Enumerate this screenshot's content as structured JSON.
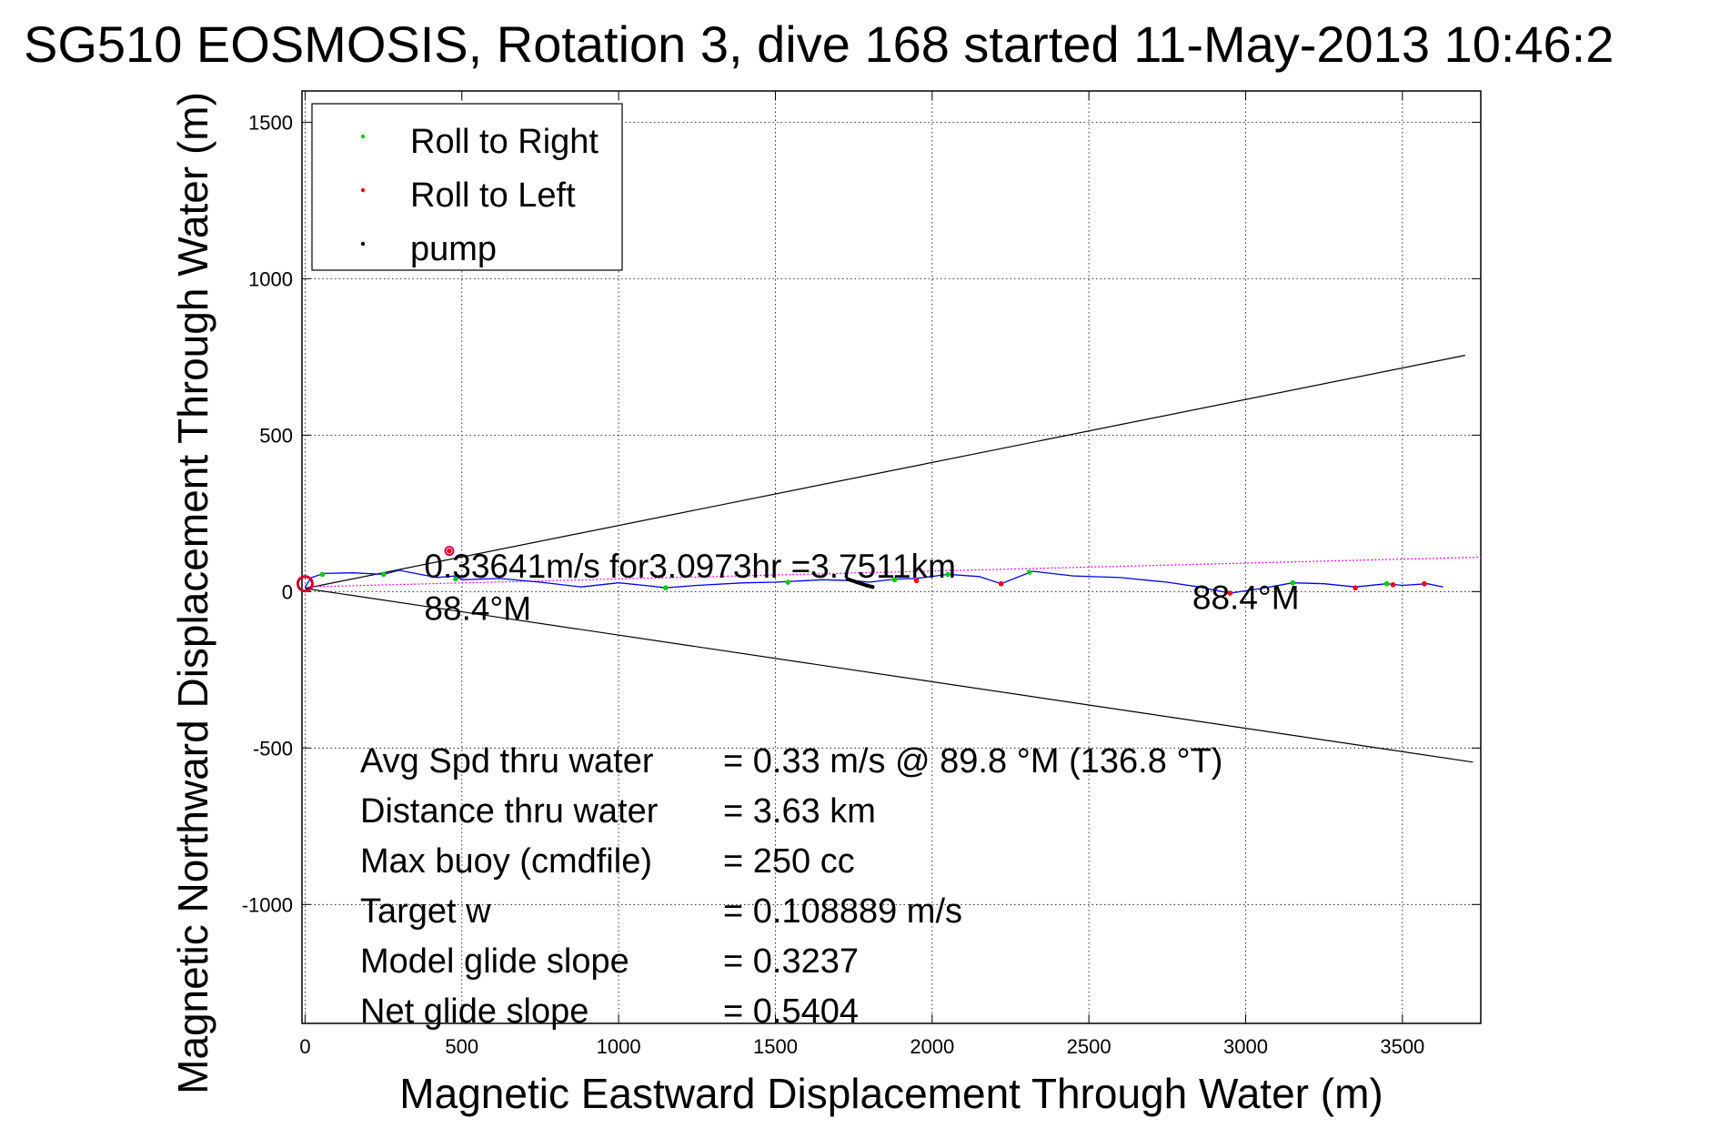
{
  "chart_data": {
    "type": "line",
    "title": "SG510 EOSMOSIS, Rotation 3, dive 168 started 11-May-2013 10:46:2",
    "xlabel": "Magnetic Eastward Displacement Through Water (m)",
    "ylabel": "Magnetic Northward Displacement Through Water (m)",
    "xlim": [
      -10,
      3750
    ],
    "ylim": [
      -1380,
      1600
    ],
    "grid": true,
    "legend_position": "top-left",
    "x_ticks": [
      "0",
      "500",
      "1000",
      "1500",
      "2000",
      "2500",
      "3000",
      "3500"
    ],
    "y_ticks": [
      "1500",
      "1000",
      "500",
      "0",
      "-500",
      "-1000"
    ],
    "x_tick_values": [
      0,
      500,
      1000,
      1500,
      2000,
      2500,
      3000,
      3500
    ],
    "y_tick_values": [
      1500,
      1000,
      500,
      0,
      -500,
      -1000
    ],
    "legend": [
      {
        "label": "Roll to Right",
        "color": "#00cc00"
      },
      {
        "label": "Roll to Left",
        "color": "#ff0000"
      },
      {
        "label": "pump",
        "color": "#000000"
      }
    ],
    "colors": {
      "track": "#0000ff",
      "net": "#ff00ff",
      "cone": "#000000"
    },
    "track": {
      "x": [
        0,
        20,
        60,
        150,
        250,
        300,
        420,
        480,
        500,
        620,
        750,
        880,
        1000,
        1100,
        1150,
        1250,
        1400,
        1500,
        1650,
        1750,
        1800,
        1880,
        1950,
        2050,
        2150,
        2220,
        2320,
        2450,
        2600,
        2750,
        2850,
        2950,
        3050,
        3150,
        3250,
        3350,
        3450,
        3500,
        3580,
        3630
      ],
      "y": [
        15,
        45,
        58,
        60,
        55,
        68,
        45,
        50,
        38,
        42,
        30,
        15,
        28,
        18,
        12,
        20,
        28,
        30,
        38,
        35,
        30,
        40,
        42,
        55,
        48,
        25,
        65,
        50,
        45,
        30,
        15,
        -5,
        10,
        28,
        25,
        15,
        25,
        20,
        25,
        15
      ]
    },
    "net_line": {
      "x": [
        0,
        3750
      ],
      "y": [
        15,
        110
      ]
    },
    "cone_lines": [
      {
        "x": [
          0,
          3700
        ],
        "y": [
          10,
          755
        ]
      },
      {
        "x": [
          0,
          3725
        ],
        "y": [
          10,
          -545
        ]
      }
    ],
    "roll_right_points": {
      "x": [
        55,
        250,
        480,
        1150,
        1540,
        1880,
        2050,
        2310,
        3150,
        3450,
        3570
      ],
      "y": [
        55,
        55,
        40,
        12,
        30,
        38,
        55,
        62,
        28,
        25,
        25
      ]
    },
    "roll_left_points": {
      "x": [
        460,
        1950,
        2220,
        2950,
        3350,
        3470,
        3570
      ],
      "y": [
        130,
        35,
        25,
        -5,
        12,
        22,
        25
      ]
    },
    "pump_points": {
      "x": [
        1730,
        1760,
        1790,
        1810
      ],
      "y": [
        40,
        30,
        20,
        15
      ]
    },
    "start_marker": {
      "x": 0,
      "y": 25,
      "color": "#cc0033"
    },
    "annotations": [
      {
        "text": "0.33641m/s for3.0973hr =3.7511km",
        "x": 380,
        "y": 45
      },
      {
        "text": "88.4°M",
        "x": 380,
        "y": -90
      },
      {
        "text": "88.4°M",
        "x": 2830,
        "y": -55
      }
    ],
    "stats": [
      {
        "label": "Avg Spd thru water",
        "value": "=  0.33 m/s @  89.8 °M (136.8 °T)"
      },
      {
        "label": "Distance thru water",
        "value": "=  3.63 km"
      },
      {
        "label": "Max buoy (cmdfile)",
        "value": "= 250 cc"
      },
      {
        "label": "Target w",
        "value": "= 0.108889 m/s"
      },
      {
        "label": "Model glide slope",
        "value": "= 0.3237"
      },
      {
        "label": "Net glide slope",
        "value": "= 0.5404"
      }
    ]
  }
}
